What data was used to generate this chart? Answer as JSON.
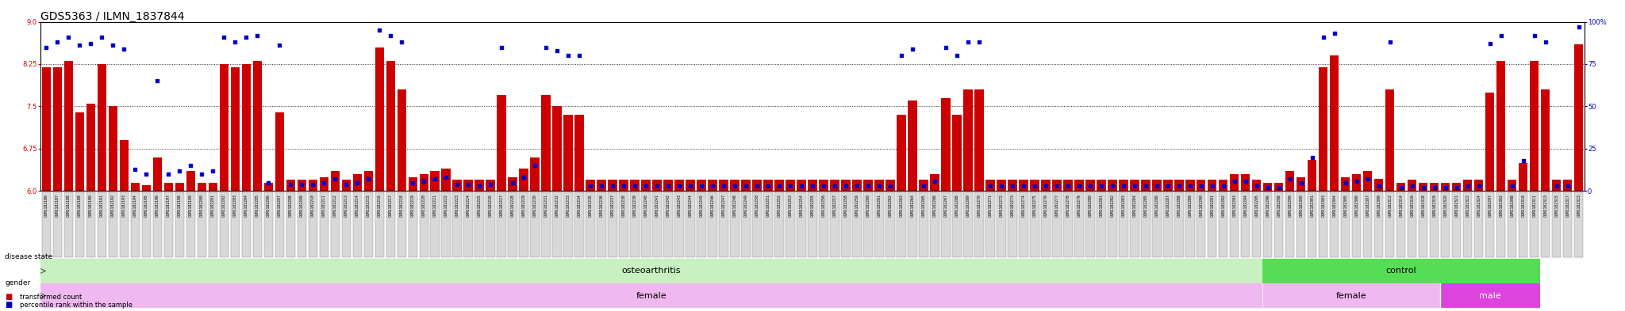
{
  "title": "GDS5363 / ILMN_1837844",
  "samples": [
    "GSM1182186",
    "GSM1182187",
    "GSM1182188",
    "GSM1182189",
    "GSM1182190",
    "GSM1182191",
    "GSM1182192",
    "GSM1182193",
    "GSM1182194",
    "GSM1182195",
    "GSM1182196",
    "GSM1182197",
    "GSM1182198",
    "GSM1182199",
    "GSM1182200",
    "GSM1182201",
    "GSM1182202",
    "GSM1182203",
    "GSM1182204",
    "GSM1182205",
    "GSM1182206",
    "GSM1182207",
    "GSM1182208",
    "GSM1182209",
    "GSM1182210",
    "GSM1182211",
    "GSM1182212",
    "GSM1182213",
    "GSM1182214",
    "GSM1182215",
    "GSM1182216",
    "GSM1182217",
    "GSM1182218",
    "GSM1182219",
    "GSM1182220",
    "GSM1182221",
    "GSM1182222",
    "GSM1182223",
    "GSM1182224",
    "GSM1182225",
    "GSM1182226",
    "GSM1182227",
    "GSM1182228",
    "GSM1182229",
    "GSM1182230",
    "GSM1182231",
    "GSM1182232",
    "GSM1182233",
    "GSM1182234",
    "GSM1182235",
    "GSM1182236",
    "GSM1182237",
    "GSM1182238",
    "GSM1182239",
    "GSM1182240",
    "GSM1182241",
    "GSM1182242",
    "GSM1182243",
    "GSM1182244",
    "GSM1182245",
    "GSM1182246",
    "GSM1182247",
    "GSM1182248",
    "GSM1182249",
    "GSM1182250",
    "GSM1182251",
    "GSM1182252",
    "GSM1182253",
    "GSM1182254",
    "GSM1182255",
    "GSM1182256",
    "GSM1182257",
    "GSM1182258",
    "GSM1182259",
    "GSM1182260",
    "GSM1182261",
    "GSM1182262",
    "GSM1182263",
    "GSM1182264",
    "GSM1182265",
    "GSM1182266",
    "GSM1182267",
    "GSM1182268",
    "GSM1182269",
    "GSM1182270",
    "GSM1182271",
    "GSM1182272",
    "GSM1182273",
    "GSM1182274",
    "GSM1182275",
    "GSM1182276",
    "GSM1182277",
    "GSM1182278",
    "GSM1182279",
    "GSM1182280",
    "GSM1182281",
    "GSM1182282",
    "GSM1182283",
    "GSM1182284",
    "GSM1182285",
    "GSM1182286",
    "GSM1182287",
    "GSM1182288",
    "GSM1182289",
    "GSM1182290",
    "GSM1182291",
    "GSM1182292",
    "GSM1182293",
    "GSM1182294",
    "GSM1182295",
    "GSM1182296",
    "GSM1182298",
    "GSM1182299",
    "GSM1182300",
    "GSM1182301",
    "GSM1182303",
    "GSM1182304",
    "GSM1182305",
    "GSM1182306",
    "GSM1182307",
    "GSM1182309",
    "GSM1182312",
    "GSM1182314",
    "GSM1182316",
    "GSM1182318",
    "GSM1182319",
    "GSM1182320",
    "GSM1182321",
    "GSM1182322",
    "GSM1182324",
    "GSM1182297",
    "GSM1182302",
    "GSM1182308",
    "GSM1182310",
    "GSM1182311",
    "GSM1182313",
    "GSM1182315",
    "GSM1182317",
    "GSM1182323"
  ],
  "transformed_count": [
    8.2,
    8.2,
    8.3,
    7.4,
    7.55,
    8.25,
    7.5,
    6.9,
    6.15,
    6.1,
    6.6,
    6.15,
    6.15,
    6.35,
    6.15,
    6.15,
    8.25,
    8.2,
    8.25,
    8.3,
    6.15,
    7.4,
    6.2,
    6.2,
    6.2,
    6.25,
    6.35,
    6.2,
    6.3,
    6.35,
    8.55,
    8.3,
    7.8,
    6.25,
    6.3,
    6.35,
    6.4,
    6.2,
    6.2,
    6.2,
    6.2,
    7.7,
    6.25,
    6.4,
    6.6,
    7.7,
    7.5,
    7.35,
    7.35,
    6.2,
    6.2,
    6.2,
    6.2,
    6.2,
    6.2,
    6.2,
    6.2,
    6.2,
    6.2,
    6.2,
    6.2,
    6.2,
    6.2,
    6.2,
    6.2,
    6.2,
    6.2,
    6.2,
    6.2,
    6.2,
    6.2,
    6.2,
    6.2,
    6.2,
    6.2,
    6.2,
    6.2,
    7.35,
    7.6,
    6.2,
    6.3,
    7.65,
    7.35,
    7.8,
    7.8,
    6.2,
    6.2,
    6.2,
    6.2,
    6.2,
    6.2,
    6.2,
    6.2,
    6.2,
    6.2,
    6.2,
    6.2,
    6.2,
    6.2,
    6.2,
    6.2,
    6.2,
    6.2,
    6.2,
    6.2,
    6.2,
    6.2,
    6.3,
    6.3,
    6.2,
    6.15,
    6.15,
    6.35,
    6.25,
    6.55,
    8.2,
    8.4,
    6.25,
    6.3,
    6.35,
    6.22,
    7.8,
    6.15,
    6.2,
    6.15,
    6.15,
    6.15,
    6.15,
    6.2,
    6.2,
    7.75,
    8.3,
    6.2,
    6.5,
    8.3,
    7.8,
    6.2,
    6.2,
    8.6
  ],
  "percentile_rank": [
    85,
    88,
    91,
    86,
    87,
    91,
    86,
    84,
    13,
    10,
    65,
    10,
    12,
    15,
    10,
    12,
    91,
    88,
    91,
    92,
    5,
    86,
    4,
    4,
    4,
    5,
    7,
    4,
    5,
    7,
    95,
    92,
    88,
    5,
    6,
    7,
    8,
    4,
    4,
    3,
    4,
    85,
    5,
    8,
    15,
    85,
    83,
    80,
    80,
    3,
    3,
    3,
    3,
    3,
    3,
    3,
    3,
    3,
    3,
    3,
    3,
    3,
    3,
    3,
    3,
    3,
    3,
    3,
    3,
    3,
    3,
    3,
    3,
    3,
    3,
    3,
    3,
    80,
    84,
    3,
    6,
    85,
    80,
    88,
    88,
    3,
    3,
    3,
    3,
    3,
    3,
    3,
    3,
    3,
    3,
    3,
    3,
    3,
    3,
    3,
    3,
    3,
    3,
    3,
    3,
    3,
    3,
    6,
    6,
    3,
    2,
    2,
    7,
    5,
    20,
    91,
    93,
    5,
    6,
    7,
    3,
    88,
    2,
    3,
    2,
    2,
    2,
    2,
    3,
    3,
    87,
    92,
    3,
    18,
    92,
    88,
    3,
    3,
    97
  ],
  "ylim_left": [
    6.0,
    9.0
  ],
  "yticks_left": [
    6.0,
    6.75,
    7.5,
    8.25,
    9.0
  ],
  "ylim_right": [
    0,
    100
  ],
  "yticks_right": [
    0,
    25,
    50,
    75,
    100
  ],
  "ytick_labels_right": [
    "0",
    "25",
    "50",
    "75",
    "100%"
  ],
  "bar_color": "#cc0000",
  "dot_color": "#0000cc",
  "left_axis_color": "#cc0000",
  "right_axis_color": "#0000cc",
  "bar_bottom": 6.0,
  "disease_state_oa_color": "#c8f0c0",
  "disease_state_control_color": "#55dd55",
  "gender_female_color": "#f0b8f0",
  "gender_male_color": "#dd44dd",
  "n_oa": 110,
  "n_control_female": 16,
  "n_control_male": 9,
  "title_fontsize": 10,
  "tick_fontsize": 6,
  "label_fontsize": 8
}
